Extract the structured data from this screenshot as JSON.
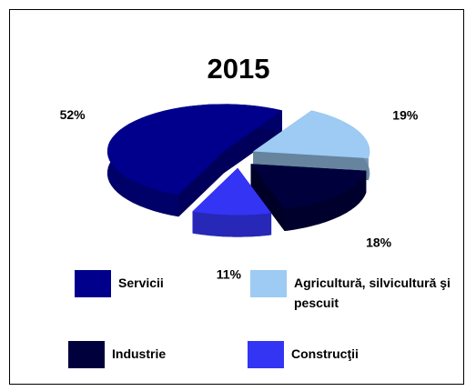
{
  "chart_data": {
    "type": "pie",
    "title": "2015",
    "categories": [
      "Agricultură, silvicultură şi pescuit",
      "Industrie",
      "Construcţii",
      "Servicii"
    ],
    "values": [
      19,
      18,
      11,
      52
    ],
    "value_labels": [
      "19%",
      "18%",
      "11%",
      "52%"
    ],
    "colors": [
      "#9dcbf3",
      "#00003c",
      "#3434f5",
      "#00008c"
    ],
    "legend": "bottom"
  }
}
